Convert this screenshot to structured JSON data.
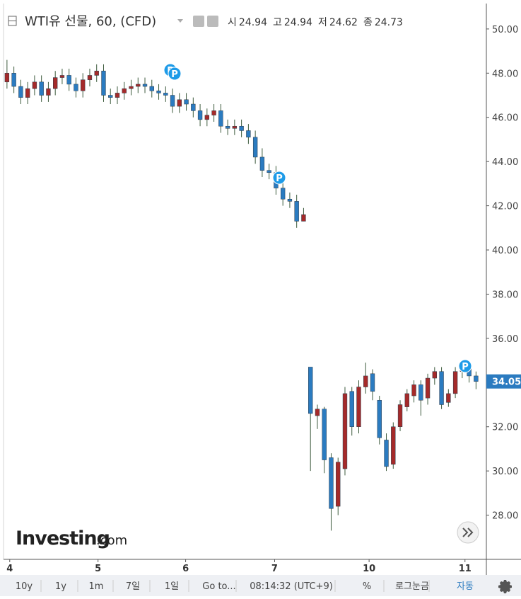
{
  "chart_data": {
    "type": "candlestick",
    "title": "WTI유 선물, 60, (CFD)",
    "ohlc_legend": [
      {
        "label": "시",
        "value": 24.94
      },
      {
        "label": "고",
        "value": 24.94
      },
      {
        "label": "저",
        "value": 24.62
      },
      {
        "label": "종",
        "value": 24.73
      }
    ],
    "open": [
      47.6,
      48.0,
      47.4,
      46.9,
      47.3,
      47.6,
      47.0,
      47.3,
      47.8,
      47.9,
      47.5,
      47.2,
      47.7,
      47.9,
      48.1,
      47.0,
      46.9,
      47.1,
      47.3,
      47.4,
      47.5,
      47.4,
      47.2,
      47.1,
      47.0,
      46.5,
      46.8,
      46.6,
      46.3,
      45.9,
      46.1,
      46.3,
      45.6,
      45.5,
      45.6,
      45.4,
      45.1,
      44.2,
      43.6,
      43.5,
      42.8,
      42.3,
      42.2,
      41.3,
      34.7,
      32.5,
      32.8,
      30.6,
      28.4,
      30.1,
      33.6,
      32.0,
      33.8,
      34.4,
      33.2,
      31.4,
      30.3,
      32.0,
      32.9,
      33.4,
      33.9,
      33.3,
      34.2,
      34.5,
      33.1,
      33.5,
      34.5,
      34.8,
      34.3
    ],
    "high": [
      48.6,
      48.3,
      47.7,
      47.6,
      47.9,
      47.9,
      47.6,
      48.1,
      48.2,
      48.2,
      47.8,
      48.0,
      48.2,
      48.4,
      48.4,
      47.3,
      47.4,
      47.6,
      47.7,
      47.8,
      47.8,
      47.7,
      47.5,
      47.4,
      47.3,
      47.1,
      47.1,
      46.9,
      46.6,
      46.4,
      46.6,
      46.6,
      45.9,
      45.9,
      45.9,
      45.7,
      45.4,
      44.6,
      43.9,
      43.8,
      43.1,
      42.6,
      42.5,
      41.9,
      34.7,
      33.0,
      32.9,
      30.8,
      30.6,
      33.8,
      33.8,
      34.1,
      34.9,
      34.6,
      33.4,
      31.7,
      32.2,
      33.2,
      33.7,
      34.1,
      34.1,
      34.4,
      34.7,
      34.7,
      33.7,
      34.7,
      35.0,
      34.9,
      34.5
    ],
    "low": [
      47.3,
      47.1,
      46.6,
      46.6,
      47.0,
      46.7,
      46.7,
      47.0,
      47.5,
      47.2,
      46.9,
      46.9,
      47.4,
      47.6,
      46.7,
      46.6,
      46.6,
      46.8,
      47.0,
      47.1,
      47.1,
      46.9,
      46.8,
      46.7,
      46.2,
      46.2,
      46.3,
      46.0,
      45.6,
      45.6,
      45.8,
      45.3,
      45.2,
      45.2,
      45.1,
      44.8,
      43.9,
      43.3,
      43.2,
      42.5,
      42.0,
      41.9,
      41.0,
      41.3,
      30.0,
      31.9,
      29.9,
      27.3,
      28.0,
      29.8,
      31.6,
      31.7,
      33.5,
      33.2,
      31.2,
      30.0,
      30.1,
      31.8,
      32.7,
      33.1,
      32.5,
      33.0,
      33.9,
      32.8,
      32.9,
      33.3,
      34.2,
      34.0,
      33.7
    ],
    "close": [
      48.0,
      47.4,
      46.9,
      47.3,
      47.6,
      47.0,
      47.3,
      47.8,
      47.9,
      47.5,
      47.2,
      47.7,
      47.9,
      48.1,
      47.0,
      46.9,
      47.1,
      47.3,
      47.4,
      47.5,
      47.4,
      47.2,
      47.1,
      47.0,
      46.5,
      46.8,
      46.6,
      46.3,
      45.9,
      46.1,
      46.3,
      45.6,
      45.5,
      45.6,
      45.4,
      45.1,
      44.2,
      43.6,
      43.5,
      42.8,
      42.3,
      42.2,
      41.3,
      41.6,
      32.6,
      32.8,
      30.5,
      28.3,
      30.4,
      33.5,
      32.0,
      33.8,
      34.3,
      33.6,
      31.5,
      30.2,
      32.0,
      33.0,
      33.5,
      33.9,
      33.2,
      34.2,
      34.5,
      33.0,
      33.5,
      34.5,
      34.8,
      34.3,
      34.05
    ],
    "up_color": "#a52a2a",
    "down_color": "#2b7bc0",
    "wick_color": "#3c5a3c",
    "xlim": [
      -0.5,
      69.5
    ],
    "xticks": [
      {
        "value": 0.4,
        "label": "4"
      },
      {
        "value": 13.2,
        "label": "5"
      },
      {
        "value": 25.9,
        "label": "6"
      },
      {
        "value": 38.8,
        "label": "7"
      },
      {
        "value": 52.5,
        "label": "10"
      },
      {
        "value": 66.4,
        "label": "11"
      }
    ],
    "ylim": [
      26.0,
      51.15
    ],
    "yticks": [
      {
        "value": 28,
        "label": "28.00"
      },
      {
        "value": 30,
        "label": "30.00"
      },
      {
        "value": 32,
        "label": "32.00"
      },
      {
        "value": 34,
        "label": "34.00"
      },
      {
        "value": 36,
        "label": "36.00"
      },
      {
        "value": 38,
        "label": "38.00"
      },
      {
        "value": 40,
        "label": "40.00"
      },
      {
        "value": 42,
        "label": "42.00"
      },
      {
        "value": 44,
        "label": "44.00"
      },
      {
        "value": 46,
        "label": "46.00"
      },
      {
        "value": 48,
        "label": "48.00"
      },
      {
        "value": 50,
        "label": "50.00"
      }
    ],
    "grid": false,
    "last_price": 34.05,
    "last_price_color": "#2b7bc0",
    "event_marker": "P",
    "watermark": [
      "Investing",
      ".com"
    ]
  },
  "toolbar": [
    "10y",
    "1y",
    "1m",
    "7일",
    "1일",
    "Go to...",
    "08:14:32 (UTC+9)",
    "%",
    "로그눈금",
    "자동"
  ]
}
